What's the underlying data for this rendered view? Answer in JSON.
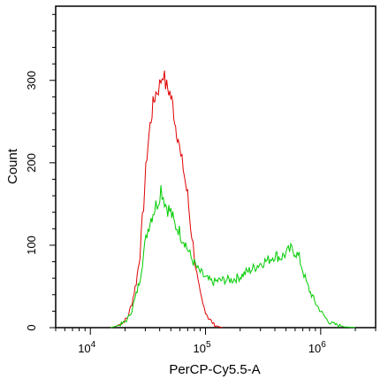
{
  "chart_data": {
    "type": "line",
    "title": "",
    "xlabel": "PerCP-Cy5.5-A",
    "ylabel": "Count",
    "x_scale": "log",
    "xlim": [
      5000,
      3000000
    ],
    "ylim": [
      0,
      390
    ],
    "x_ticks": [
      {
        "value": 10000,
        "base": "10",
        "exp": "4"
      },
      {
        "value": 100000,
        "base": "10",
        "exp": "5"
      },
      {
        "value": 1000000,
        "base": "10",
        "exp": "6"
      }
    ],
    "y_ticks": [
      {
        "value": 0,
        "label": "0"
      },
      {
        "value": 100,
        "label": "100"
      },
      {
        "value": 200,
        "label": "200"
      },
      {
        "value": 300,
        "label": "300"
      }
    ],
    "grid": false,
    "series": [
      {
        "color": "#e00000",
        "x": [
          15000,
          17000,
          19000,
          21000,
          23000,
          25000,
          27000,
          29000,
          31000,
          33000,
          35000,
          37000,
          39000,
          41000,
          43000,
          45000,
          47000,
          49000,
          52000,
          55000,
          58000,
          61000,
          64000,
          67000,
          70000,
          74000,
          78000,
          82000,
          86000,
          90000,
          95000,
          100000,
          106000,
          112000,
          118000,
          125000,
          132000,
          140000
        ],
        "values": [
          0,
          2,
          6,
          12,
          30,
          55,
          90,
          150,
          210,
          245,
          270,
          285,
          290,
          300,
          310,
          295,
          290,
          285,
          270,
          245,
          230,
          205,
          195,
          175,
          160,
          125,
          100,
          75,
          55,
          40,
          28,
          20,
          12,
          8,
          4,
          2,
          1,
          0
        ]
      },
      {
        "color": "#00cc00",
        "x": [
          15000,
          17000,
          19000,
          21000,
          23000,
          25000,
          27000,
          29000,
          31000,
          33000,
          35000,
          37000,
          39000,
          41000,
          43000,
          45000,
          47000,
          50000,
          54000,
          58000,
          62000,
          66000,
          70000,
          75000,
          80000,
          86000,
          92000,
          100000,
          115000,
          130000,
          150000,
          170000,
          200000,
          230000,
          260000,
          300000,
          350000,
          400000,
          450000,
          500000,
          550000,
          600000,
          650000,
          700000,
          750000,
          800000,
          850000,
          900000,
          1000000,
          1100000,
          1200000,
          1400000,
          1600000,
          2000000
        ],
        "values": [
          0,
          2,
          5,
          10,
          22,
          40,
          60,
          90,
          115,
          130,
          140,
          148,
          155,
          170,
          160,
          150,
          145,
          140,
          125,
          120,
          110,
          105,
          95,
          85,
          78,
          70,
          66,
          60,
          55,
          57,
          58,
          58,
          62,
          68,
          72,
          78,
          82,
          88,
          85,
          90,
          95,
          92,
          85,
          70,
          55,
          45,
          38,
          30,
          20,
          12,
          6,
          3,
          1,
          0
        ]
      }
    ]
  }
}
